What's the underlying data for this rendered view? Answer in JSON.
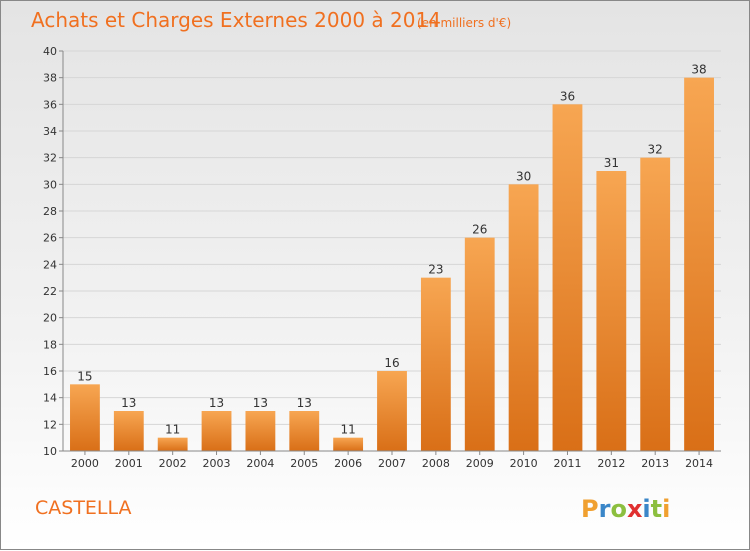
{
  "chart_data": {
    "type": "bar",
    "title": "Achats et Charges Externes 2000 à 2014",
    "subtitle": "(en milliers d'€)",
    "categories": [
      "2000",
      "2001",
      "2002",
      "2003",
      "2004",
      "2005",
      "2006",
      "2007",
      "2008",
      "2009",
      "2010",
      "2011",
      "2012",
      "2013",
      "2014"
    ],
    "values": [
      15,
      13,
      11,
      13,
      13,
      13,
      11,
      16,
      23,
      26,
      30,
      36,
      31,
      32,
      38
    ],
    "ylim": [
      10,
      40
    ],
    "yticks": [
      10,
      12,
      14,
      16,
      18,
      20,
      22,
      24,
      26,
      28,
      30,
      32,
      34,
      36,
      38,
      40
    ],
    "grid": true,
    "bar_color": "#f08b30"
  },
  "location": "CASTELLA",
  "brand": {
    "letters": [
      "P",
      "r",
      "o",
      "x",
      "i",
      "t",
      "i"
    ],
    "colors": [
      "#f0a030",
      "#3a86c8",
      "#8cbf3f",
      "#e03030",
      "#3a86c8",
      "#8cbf3f",
      "#f0a030"
    ]
  }
}
